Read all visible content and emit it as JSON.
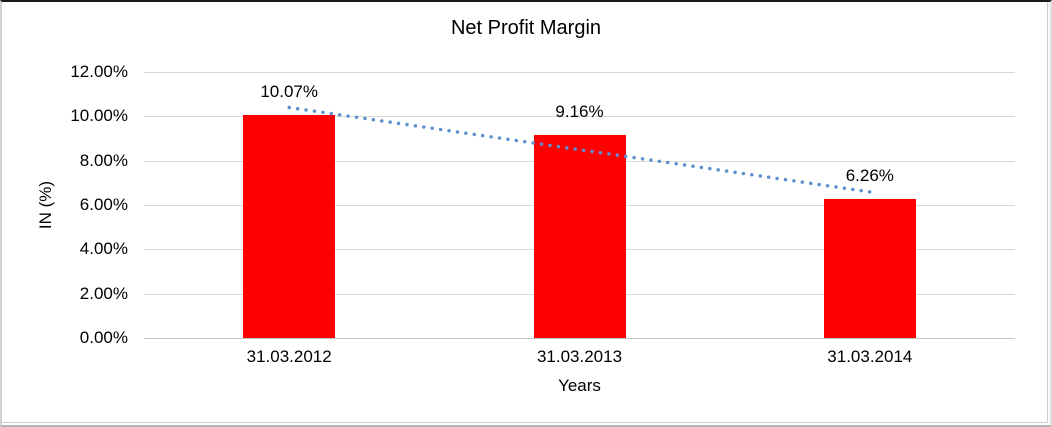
{
  "frame": {
    "background": "#ffffff",
    "border_top_color": "#1a1a1a",
    "border_side_color": "#cccccc"
  },
  "chart_data": {
    "type": "bar",
    "title": "Net Profit Margin",
    "xlabel": "Years",
    "ylabel": "IN (%)",
    "categories": [
      "31.03.2012",
      "31.03.2013",
      "31.03.2014"
    ],
    "series": [
      {
        "name": "Net Profit Margin",
        "values": [
          10.07,
          9.16,
          6.26
        ],
        "data_labels": [
          "10.07%",
          "9.16%",
          "6.26%"
        ],
        "color": "#ff0000"
      }
    ],
    "ylim": [
      0,
      12
    ],
    "yticks": [
      {
        "value": 0,
        "label": "0.00%"
      },
      {
        "value": 2,
        "label": "2.00%"
      },
      {
        "value": 4,
        "label": "4.00%"
      },
      {
        "value": 6,
        "label": "6.00%"
      },
      {
        "value": 8,
        "label": "8.00%"
      },
      {
        "value": 10,
        "label": "10.00%"
      },
      {
        "value": 12,
        "label": "12.00%"
      }
    ],
    "grid": true,
    "gridline_color": "#d9d9d9",
    "legend": "none",
    "trendline": {
      "type": "linear",
      "style": "dotted",
      "color": "#5b8fd0",
      "start_value": 10.4,
      "end_value": 6.59
    }
  }
}
